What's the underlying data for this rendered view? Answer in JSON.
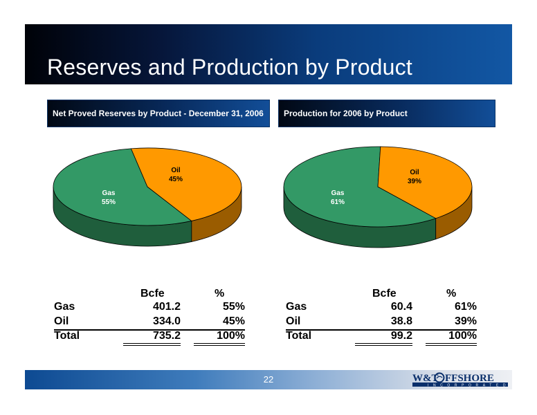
{
  "title": "Reserves and Production by Product",
  "page_number": "22",
  "logo": {
    "text": "W&T OFFSHORE",
    "sub": "INCORPORATED"
  },
  "colors": {
    "gas": "#339966",
    "oil": "#FF9900",
    "title_bg": "#0a3c7c"
  },
  "chart_data": [
    {
      "type": "pie",
      "title": "Net Proved Reserves by Product - December 31, 2006",
      "slices": [
        {
          "label": "Gas",
          "value": 55,
          "text": "55%"
        },
        {
          "label": "Oil",
          "value": 45,
          "text": "45%"
        }
      ]
    },
    {
      "type": "pie",
      "title": "Production for 2006 by Product",
      "slices": [
        {
          "label": "Gas",
          "value": 61,
          "text": "61%"
        },
        {
          "label": "Oil",
          "value": 39,
          "text": "39%"
        }
      ]
    }
  ],
  "tables": [
    {
      "headers": [
        "Bcfe",
        "%"
      ],
      "rows": [
        {
          "label": "Gas",
          "bcfe": "401.2",
          "pct": "55%"
        },
        {
          "label": "Oil",
          "bcfe": "334.0",
          "pct": "45%"
        },
        {
          "label": "Total",
          "bcfe": "735.2",
          "pct": "100%"
        }
      ]
    },
    {
      "headers": [
        "Bcfe",
        "%"
      ],
      "rows": [
        {
          "label": "Gas",
          "bcfe": "60.4",
          "pct": "61%"
        },
        {
          "label": "Oil",
          "bcfe": "38.8",
          "pct": "39%"
        },
        {
          "label": "Total",
          "bcfe": "99.2",
          "pct": "100%"
        }
      ]
    }
  ]
}
